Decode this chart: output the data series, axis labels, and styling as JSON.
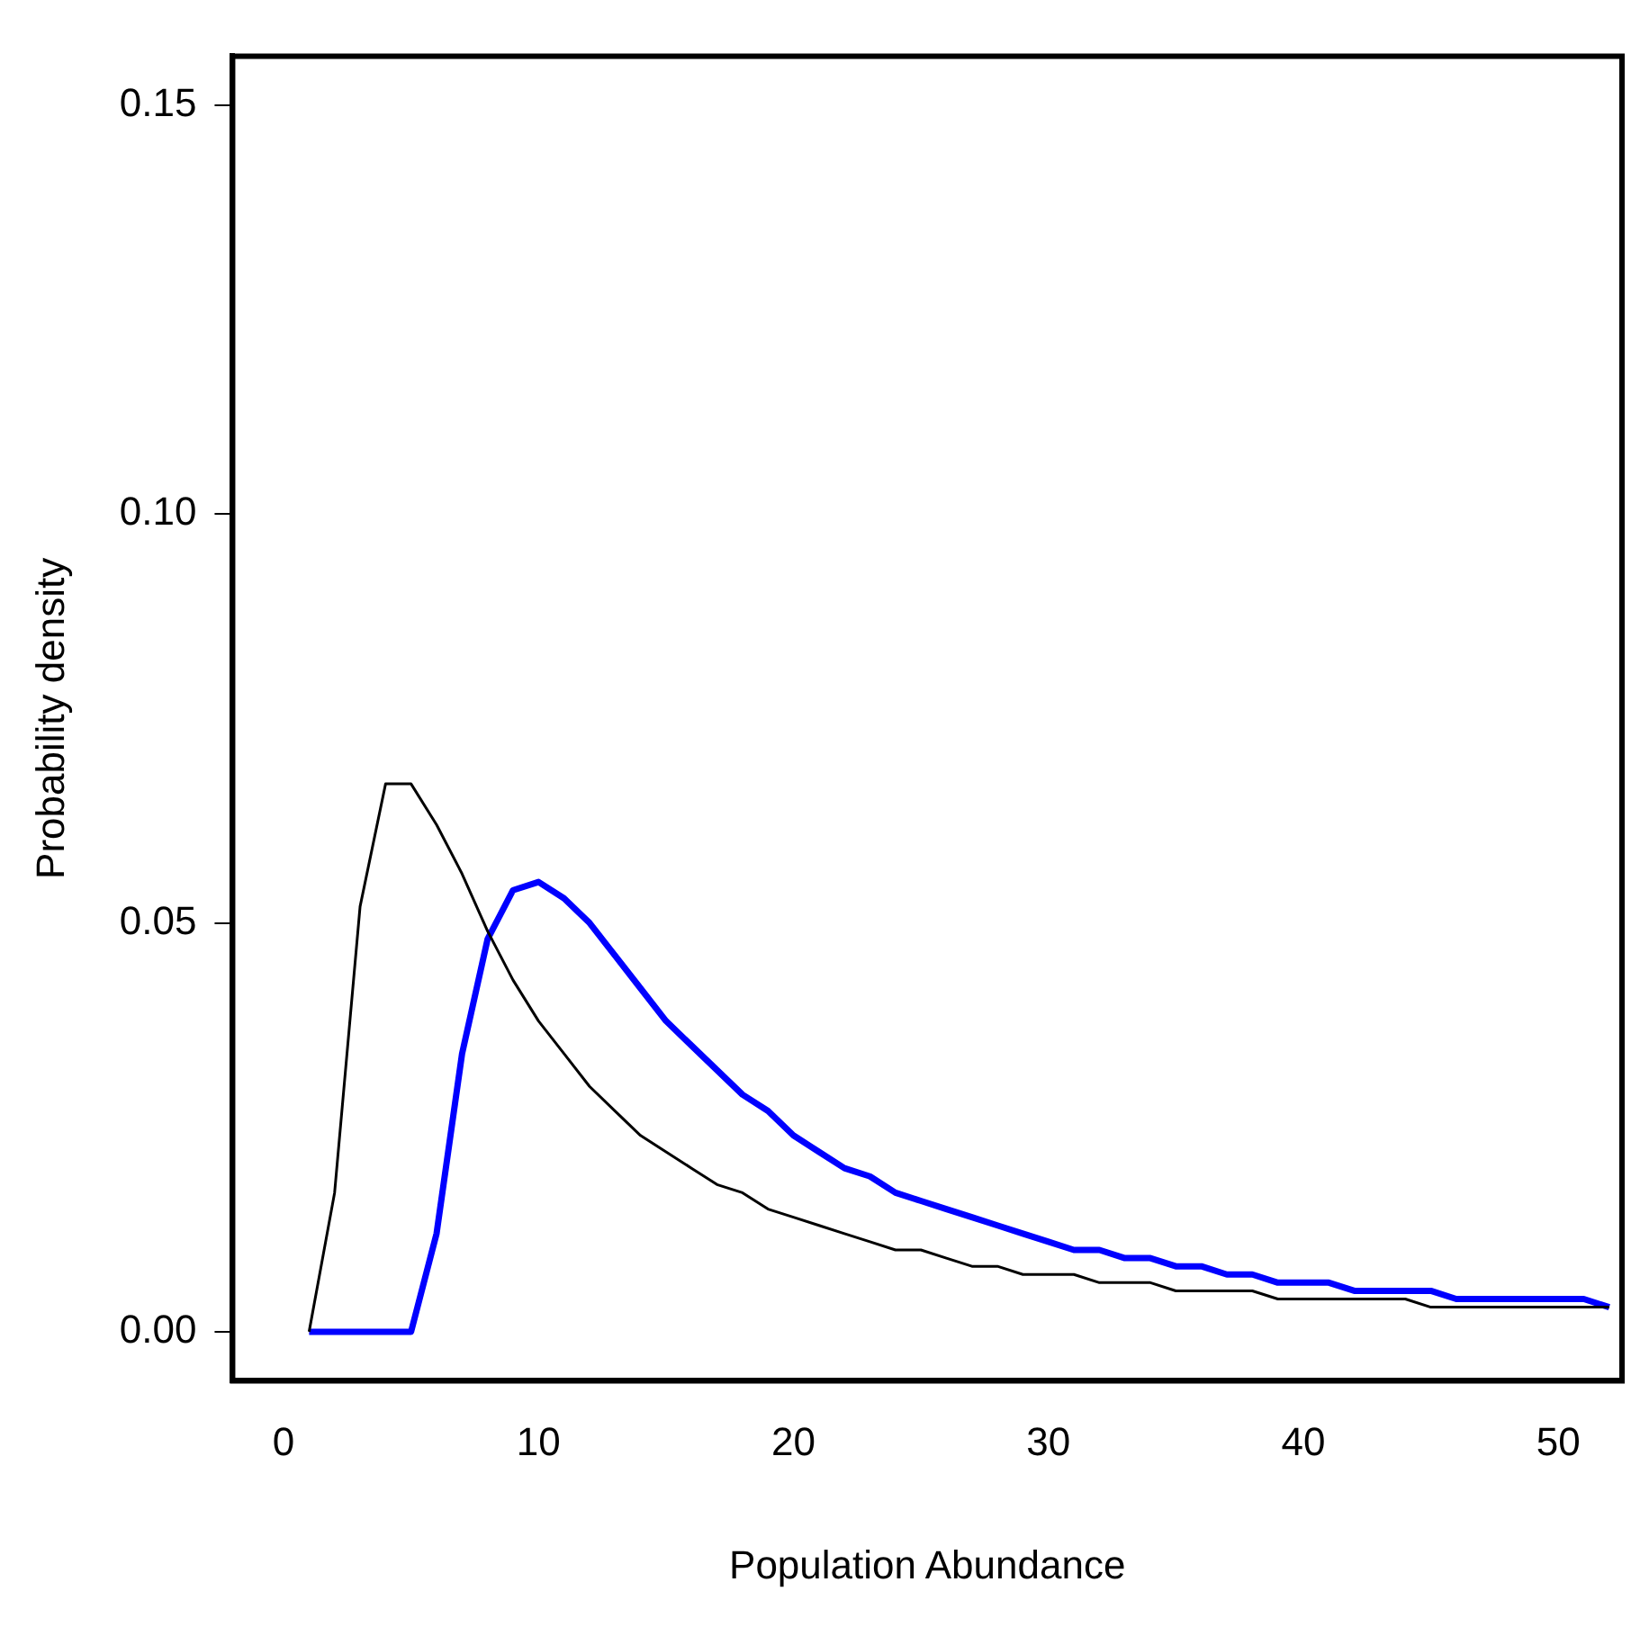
{
  "chart_data": {
    "type": "line",
    "xlabel": "Population Abundance",
    "ylabel": "Probability density",
    "x": [
      1,
      2,
      3,
      4,
      5,
      6,
      7,
      8,
      9,
      10,
      11,
      12,
      13,
      14,
      15,
      16,
      17,
      18,
      19,
      20,
      21,
      22,
      23,
      24,
      25,
      26,
      27,
      28,
      29,
      30,
      31,
      32,
      33,
      34,
      35,
      36,
      37,
      38,
      39,
      40,
      41,
      42,
      43,
      44,
      45,
      46,
      47,
      48,
      49,
      50,
      51,
      52
    ],
    "series": [
      {
        "color": "#000000",
        "values": [
          0,
          0.017,
          0.052,
          0.067,
          0.067,
          0.062,
          0.056,
          0.049,
          0.043,
          0.038,
          0.034,
          0.03,
          0.027,
          0.024,
          0.022,
          0.02,
          0.018,
          0.017,
          0.015,
          0.014,
          0.013,
          0.012,
          0.011,
          0.01,
          0.01,
          0.009,
          0.008,
          0.008,
          0.007,
          0.007,
          0.007,
          0.006,
          0.006,
          0.006,
          0.005,
          0.005,
          0.005,
          0.005,
          0.004,
          0.004,
          0.004,
          0.004,
          0.004,
          0.004,
          0.003,
          0.003,
          0.003,
          0.003,
          0.003,
          0.003,
          0.003,
          0.003
        ]
      },
      {
        "color": "#0000ff",
        "values": [
          0,
          0,
          0,
          0,
          0,
          0.012,
          0.034,
          0.048,
          0.054,
          0.055,
          0.053,
          0.05,
          0.046,
          0.042,
          0.038,
          0.035,
          0.032,
          0.029,
          0.027,
          0.024,
          0.022,
          0.02,
          0.019,
          0.017,
          0.016,
          0.015,
          0.014,
          0.013,
          0.012,
          0.011,
          0.01,
          0.01,
          0.009,
          0.009,
          0.008,
          0.008,
          0.007,
          0.007,
          0.006,
          0.006,
          0.006,
          0.005,
          0.005,
          0.005,
          0.005,
          0.004,
          0.004,
          0.004,
          0.004,
          0.004,
          0.004,
          0.003
        ]
      }
    ],
    "xlim": [
      -2,
      52.5
    ],
    "ylim": [
      -0.006,
      0.156
    ],
    "xticks": [
      0,
      10,
      20,
      30,
      40,
      50
    ],
    "yticks": [
      {
        "value": 0,
        "label": "0.00"
      },
      {
        "value": 0.05,
        "label": "0.05"
      },
      {
        "value": 0.1,
        "label": "0.10"
      },
      {
        "value": 0.15,
        "label": "0.15"
      }
    ],
    "grid": false,
    "legend": false,
    "marker": "none",
    "line_style": "solid"
  }
}
